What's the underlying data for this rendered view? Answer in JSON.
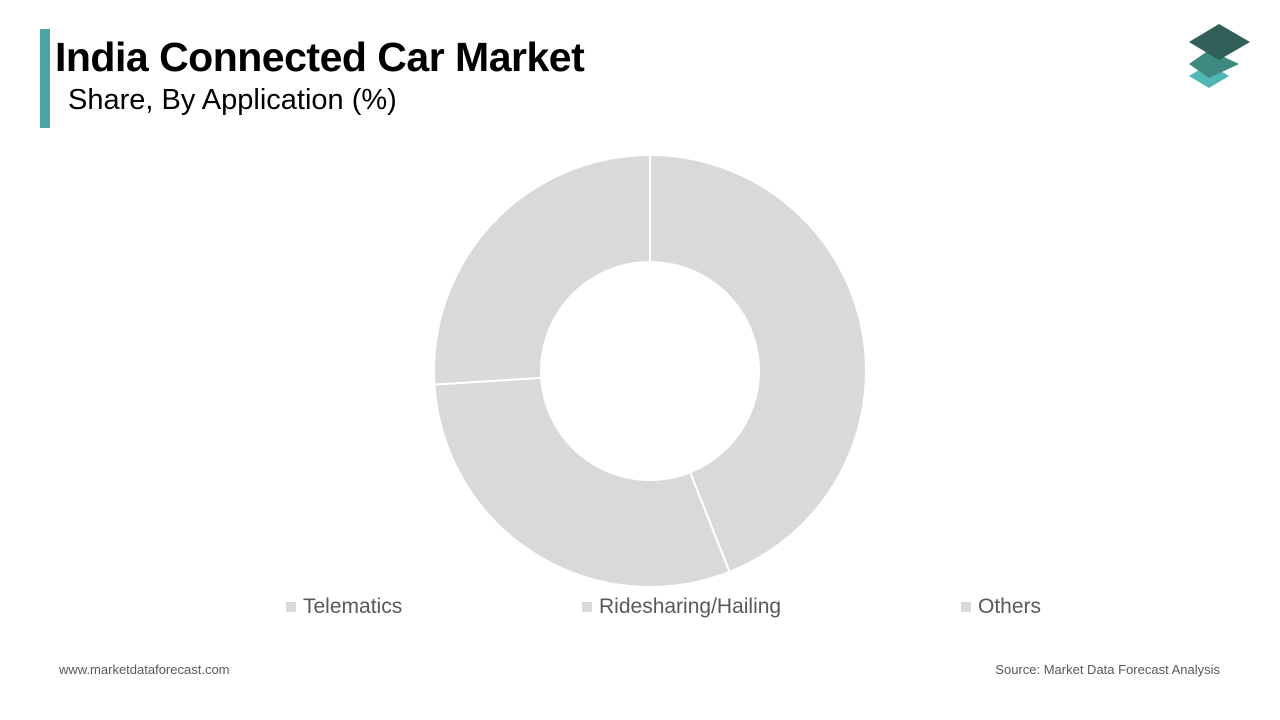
{
  "header": {
    "title": "India Connected Car Market",
    "subtitle": "Share, By Application (%)"
  },
  "colors": {
    "accent": "#4aa6a6",
    "slice": "#d9d9d9",
    "slice_border": "#ffffff",
    "text_muted": "#595959",
    "logo_dark": "#2f5f58",
    "logo_mid": "#3e8a80",
    "logo_light": "#4fb8b4"
  },
  "logo": {
    "icon": "stacked-layers-icon"
  },
  "chart_data": {
    "type": "pie",
    "donut": true,
    "categories": [
      "Telematics",
      "Ridesharing/Hailing",
      "Others"
    ],
    "values": [
      44,
      30,
      26
    ],
    "legend_position": "bottom"
  },
  "footer": {
    "website": "www.marketdataforecast.com",
    "source": "Source: Market Data Forecast Analysis"
  }
}
